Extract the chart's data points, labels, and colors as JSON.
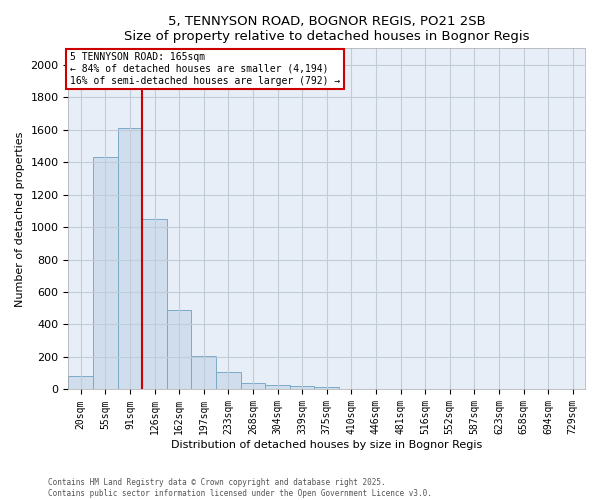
{
  "title1": "5, TENNYSON ROAD, BOGNOR REGIS, PO21 2SB",
  "title2": "Size of property relative to detached houses in Bognor Regis",
  "xlabel": "Distribution of detached houses by size in Bognor Regis",
  "ylabel": "Number of detached properties",
  "bar_color": "#cfdded",
  "bar_edge_color": "#7aaac8",
  "bin_labels": [
    "20sqm",
    "55sqm",
    "91sqm",
    "126sqm",
    "162sqm",
    "197sqm",
    "233sqm",
    "268sqm",
    "304sqm",
    "339sqm",
    "375sqm",
    "410sqm",
    "446sqm",
    "481sqm",
    "516sqm",
    "552sqm",
    "587sqm",
    "623sqm",
    "658sqm",
    "694sqm",
    "729sqm"
  ],
  "bar_values": [
    80,
    1430,
    1610,
    1050,
    490,
    205,
    105,
    40,
    30,
    20,
    15,
    0,
    0,
    0,
    0,
    0,
    0,
    0,
    0,
    0,
    0
  ],
  "vline_pos": 2.5,
  "vline_color": "#cc0000",
  "annotation_title": "5 TENNYSON ROAD: 165sqm",
  "annotation_line1": "← 84% of detached houses are smaller (4,194)",
  "annotation_line2": "16% of semi-detached houses are larger (792) →",
  "annotation_box_color": "#ffffff",
  "annotation_box_edge": "#cc0000",
  "ylim": [
    0,
    2100
  ],
  "yticks": [
    0,
    200,
    400,
    600,
    800,
    1000,
    1200,
    1400,
    1600,
    1800,
    2000
  ],
  "grid_color": "#c0ccd8",
  "background_color": "#e8eef8",
  "footer1": "Contains HM Land Registry data © Crown copyright and database right 2025.",
  "footer2": "Contains public sector information licensed under the Open Government Licence v3.0."
}
